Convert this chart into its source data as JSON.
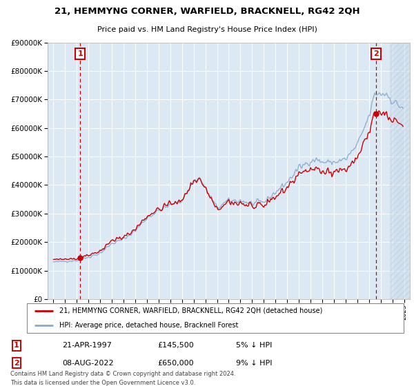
{
  "title1": "21, HEMMYNG CORNER, WARFIELD, BRACKNELL, RG42 2QH",
  "title2": "Price paid vs. HM Land Registry's House Price Index (HPI)",
  "legend_line1": "21, HEMMYNG CORNER, WARFIELD, BRACKNELL, RG42 2QH (detached house)",
  "legend_line2": "HPI: Average price, detached house, Bracknell Forest",
  "footer1": "Contains HM Land Registry data © Crown copyright and database right 2024.",
  "footer2": "This data is licensed under the Open Government Licence v3.0.",
  "sale1_date": "21-APR-1997",
  "sale1_price": "£145,500",
  "sale1_hpi": "5% ↓ HPI",
  "sale2_date": "08-AUG-2022",
  "sale2_price": "£650,000",
  "sale2_hpi": "9% ↓ HPI",
  "sale1_year": 1997.3,
  "sale1_value": 145500,
  "sale2_year": 2022.6,
  "sale2_value": 650000,
  "price_color": "#cc0000",
  "hpi_color": "#88aacc",
  "vline_color": "#cc0000",
  "ylim": [
    0,
    900000
  ],
  "xlim": [
    1994.5,
    2025.5
  ],
  "plot_bg": "#dce9f5"
}
